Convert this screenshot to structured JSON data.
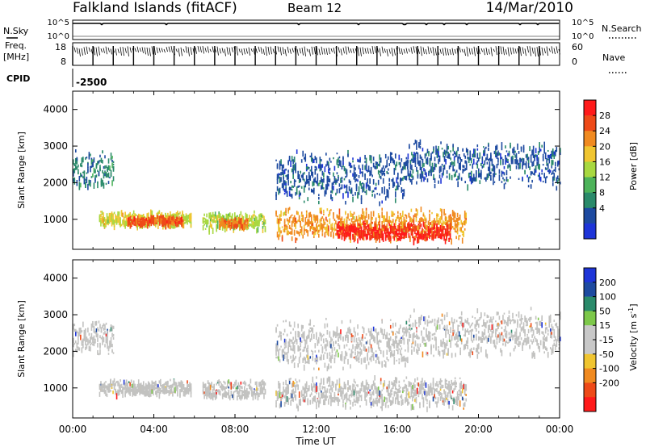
{
  "header": {
    "title": "Falkland Islands (fitACF)",
    "beam": "Beam 12",
    "date": "14/Mar/2010"
  },
  "top_panels": {
    "nsky_label": "N.Sky",
    "nsky_ticks": [
      "10^5",
      "10^0"
    ],
    "nsearch_label": "N.Search",
    "nsearch_ticks": [
      "10^5",
      "10^0"
    ],
    "freq_label_1": "Freq.",
    "freq_label_2": "[MHz]",
    "freq_ticks": [
      "18",
      "8"
    ],
    "nave_label": "Nave",
    "nave_ticks": [
      "60",
      "0"
    ],
    "cpid_label": "CPID",
    "cpid_value": "-2500"
  },
  "x_axis": {
    "ticks": [
      "00:00",
      "04:00",
      "08:00",
      "12:00",
      "16:00",
      "20:00",
      "00:00"
    ],
    "label": "Time UT"
  },
  "colors": {
    "power": [
      "#1e35d8",
      "#1d4aa0",
      "#2a8a6a",
      "#4db35a",
      "#a8d840",
      "#f0c530",
      "#f08a20",
      "#ee4a18",
      "#ff1a1a"
    ],
    "velocity": [
      "#1e35d8",
      "#1d4aa0",
      "#2a8a6a",
      "#7dc84a",
      "#c8c8c8",
      "#c8c8c8",
      "#f0c530",
      "#f08a20",
      "#ee4a18",
      "#ff1a1a"
    ],
    "gray": "#c2c2c0"
  },
  "chart_data": [
    {
      "type": "heatmap",
      "title": "Power",
      "ylabel": "Slant Range [km]",
      "xlim": [
        0,
        24
      ],
      "ylim": [
        180,
        4500
      ],
      "y_ticks": [
        "1000",
        "2000",
        "3000",
        "4000"
      ],
      "colorbar": {
        "label": "Power [dB]",
        "ticks": [
          "4",
          "8",
          "12",
          "16",
          "20",
          "24",
          "28"
        ],
        "range": [
          0,
          32
        ]
      },
      "regions": [
        {
          "t0": 0.0,
          "t1": 2.0,
          "r0": 1800,
          "r1": 3000,
          "level": 8
        },
        {
          "t0": 1.3,
          "t1": 5.8,
          "r0": 800,
          "r1": 1300,
          "level": 18
        },
        {
          "t0": 2.7,
          "t1": 5.4,
          "r0": 850,
          "r1": 1150,
          "level": 26
        },
        {
          "t0": 6.4,
          "t1": 9.5,
          "r0": 700,
          "r1": 1300,
          "level": 16
        },
        {
          "t0": 7.2,
          "t1": 8.6,
          "r0": 800,
          "r1": 1100,
          "level": 24
        },
        {
          "t0": 10.0,
          "t1": 19.4,
          "r0": 400,
          "r1": 1400,
          "level": 22
        },
        {
          "t0": 13.0,
          "t1": 18.6,
          "r0": 400,
          "r1": 1000,
          "level": 29
        },
        {
          "t0": 10.0,
          "t1": 16.5,
          "r0": 1400,
          "r1": 3000,
          "level": 6
        },
        {
          "t0": 16.5,
          "t1": 24.0,
          "r0": 1800,
          "r1": 3300,
          "level": 6
        }
      ]
    },
    {
      "type": "heatmap",
      "title": "Velocity",
      "ylabel": "Slant Range [km]",
      "xlim": [
        0,
        24
      ],
      "ylim": [
        180,
        4500
      ],
      "y_ticks": [
        "1000",
        "2000",
        "3000",
        "4000"
      ],
      "colorbar": {
        "label": "Velocity [m s-1]",
        "ticks": [
          "200",
          "100",
          "50",
          "15",
          "-15",
          "-50",
          "-100",
          "-200"
        ],
        "range": [
          -250,
          250
        ]
      },
      "regions": [
        {
          "t0": 0.0,
          "t1": 2.0,
          "r0": 1800,
          "r1": 3000,
          "value": 0
        },
        {
          "t0": 1.3,
          "t1": 5.8,
          "r0": 800,
          "r1": 1300,
          "value": 0
        },
        {
          "t0": 6.4,
          "t1": 9.5,
          "r0": 700,
          "r1": 1300,
          "value": 0
        },
        {
          "t0": 10.0,
          "t1": 19.4,
          "r0": 400,
          "r1": 1400,
          "value": 0
        },
        {
          "t0": 10.0,
          "t1": 16.5,
          "r0": 1400,
          "r1": 3000,
          "value": 0
        },
        {
          "t0": 16.5,
          "t1": 24.0,
          "r0": 1800,
          "r1": 3300,
          "value": 0
        }
      ]
    }
  ]
}
